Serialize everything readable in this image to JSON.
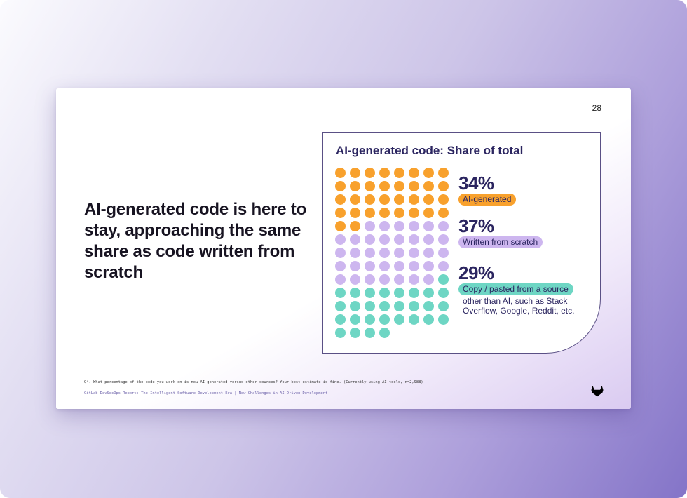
{
  "slide": {
    "page_number": "28",
    "headline": "AI-generated code is here to stay, approaching the same share as code written from scratch",
    "footnote": "Q4. What percentage of the code you work on is now AI-generated versus other sources? Your best estimate is fine. (Currently using AI tools, n=2,988)",
    "source": "GitLab DevSecOps Report: The Intelligent Software Development Era | New Challenges in AI-Driven Development",
    "logo_icon": "gitlab-tanuki-icon"
  },
  "colors": {
    "ai_generated": "#f8a12d",
    "written_from_scratch": "#cdb6ef",
    "copy_pasted": "#6ed6c4",
    "title_text": "#2b2560",
    "card_border": "#5a5085"
  },
  "chart_data": {
    "type": "waffle",
    "title": "AI-generated code: Share of total",
    "grid": {
      "columns": 8,
      "total_cells": 100
    },
    "categories": [
      "AI-generated",
      "Written from scratch",
      "Copy / pasted from a source other than AI, such as Stack Overflow, Google, Reddit, etc."
    ],
    "values": [
      34,
      37,
      29
    ],
    "unit": "%",
    "legend_position": "right",
    "stats": [
      {
        "value": "34%",
        "label": "AI-generated",
        "note": "",
        "color": "#f8a12d"
      },
      {
        "value": "37%",
        "label": "Written from scratch",
        "note": "",
        "color": "#cdb6ef"
      },
      {
        "value": "29%",
        "label": "Copy / pasted from a source",
        "note": "other than AI, such as Stack Overflow, Google, Reddit, etc.",
        "color": "#6ed6c4"
      }
    ]
  }
}
